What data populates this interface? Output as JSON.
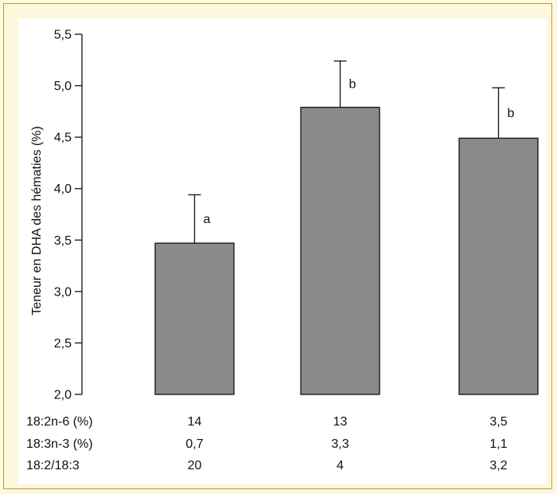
{
  "chart_data": {
    "type": "bar",
    "ylabel": "Teneur en DHA des hématies (%)",
    "ylim": [
      2.0,
      5.5
    ],
    "yticks": [
      2.0,
      2.5,
      3.0,
      3.5,
      4.0,
      4.5,
      5.0,
      5.5
    ],
    "ytick_labels": [
      "2,0",
      "2,5",
      "3,0",
      "3,5",
      "4,0",
      "4,5",
      "5,0",
      "5,5"
    ],
    "grid": false,
    "bar_color": "#8a8a8a",
    "series": [
      {
        "values": [
          3.47,
          4.79,
          4.49
        ],
        "error_upper": [
          3.94,
          5.24,
          4.98
        ],
        "significance_letters": [
          "a",
          "b",
          "b"
        ]
      }
    ],
    "table": {
      "rows": [
        {
          "label": "18:2n-6 (%)",
          "values": [
            "14",
            "13",
            "3,5"
          ]
        },
        {
          "label": "18:3n-3 (%)",
          "values": [
            "0,7",
            "3,3",
            "1,1"
          ]
        },
        {
          "label": "18:2/18:3",
          "values": [
            "20",
            "4",
            "3,2"
          ]
        }
      ]
    }
  }
}
